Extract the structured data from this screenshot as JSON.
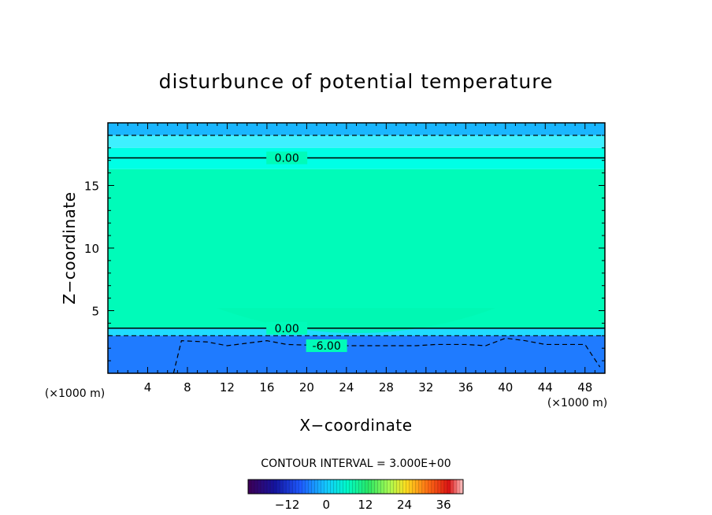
{
  "chart_data": {
    "type": "heatmap",
    "title": "disturbunce of potential temperature",
    "xlabel": "X−coordinate",
    "ylabel": "Z−coordinate",
    "x_unit": "(×1000 m)",
    "y_unit": "(×1000 m)",
    "xlim": [
      0,
      50
    ],
    "ylim": [
      0,
      20
    ],
    "x_ticks": [
      4,
      8,
      12,
      16,
      20,
      24,
      28,
      32,
      36,
      40,
      44,
      48
    ],
    "y_ticks": [
      5,
      10,
      15
    ],
    "contour_interval_text": "CONTOUR INTERVAL = 3.000E+00",
    "contour_lines": [
      {
        "level": 0,
        "label": "0.00",
        "style": "solid",
        "label_x": 18,
        "points": [
          [
            0,
            17.2
          ],
          [
            50,
            17.2
          ]
        ]
      },
      {
        "level": 0,
        "label": "0.00",
        "style": "solid",
        "label_x": 18,
        "points": [
          [
            0,
            3.6
          ],
          [
            50,
            3.6
          ]
        ]
      },
      {
        "level": -3,
        "label": "",
        "style": "dashed",
        "points": [
          [
            0,
            19.0
          ],
          [
            50,
            19.0
          ]
        ]
      },
      {
        "level": -3,
        "label": "",
        "style": "dashed",
        "points": [
          [
            0,
            3.0
          ],
          [
            50,
            3.0
          ]
        ]
      },
      {
        "level": -6,
        "label": "-6.00",
        "style": "dashed",
        "label_x": 22,
        "points": [
          [
            6.6,
            0
          ],
          [
            7.4,
            2.6
          ],
          [
            10,
            2.5
          ],
          [
            12,
            2.2
          ],
          [
            14,
            2.4
          ],
          [
            16,
            2.6
          ],
          [
            18,
            2.3
          ],
          [
            22,
            2.2
          ],
          [
            28,
            2.2
          ],
          [
            31,
            2.2
          ],
          [
            33,
            2.3
          ],
          [
            36,
            2.3
          ],
          [
            38,
            2.2
          ],
          [
            40,
            2.8
          ],
          [
            42,
            2.6
          ],
          [
            44,
            2.3
          ],
          [
            48,
            2.3
          ],
          [
            49.5,
            0.5
          ]
        ]
      }
    ],
    "fill_bands": [
      {
        "z_range": [
          19.0,
          20.0
        ],
        "color": "#1ab6ff"
      },
      {
        "z_range": [
          18.0,
          19.0
        ],
        "color": "#3ef0ff"
      },
      {
        "z_range": [
          16.3,
          18.0
        ],
        "color": "#00ffe6"
      },
      {
        "z_range": [
          3.6,
          16.3
        ],
        "color": "#00fbb9"
      },
      {
        "z_range": [
          3.0,
          3.6
        ],
        "color": "#20dcff"
      },
      {
        "z_range": [
          0.0,
          3.0
        ],
        "color": "#1f7bff"
      }
    ],
    "colorbar": {
      "range": [
        -24,
        42
      ],
      "tick_values": [
        -12,
        0,
        12,
        24,
        36
      ],
      "tick_labels": [
        "−12",
        "0",
        "12",
        "24",
        "36"
      ]
    }
  }
}
